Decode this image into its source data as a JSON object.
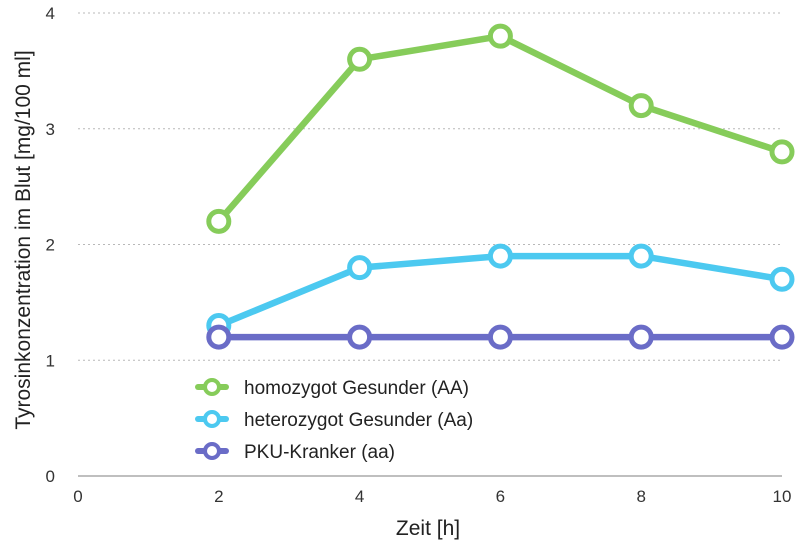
{
  "chart_data": {
    "type": "line",
    "xlabel": "Zeit [h]",
    "ylabel": "Tyrosinkonzentration im Blut [mg/100 ml]",
    "xlim": [
      0,
      10
    ],
    "ylim": [
      0,
      4
    ],
    "xticks": [
      0,
      2,
      4,
      6,
      8,
      10
    ],
    "yticks": [
      0,
      1,
      2,
      3,
      4
    ],
    "grid": "horizontal dotted",
    "legend_position": "lower-left inside plot",
    "x": [
      2,
      4,
      6,
      8,
      10
    ],
    "series": [
      {
        "name": "homozygot Gesunder (AA)",
        "color": "#86cc5a",
        "values": [
          2.2,
          3.6,
          3.8,
          3.2,
          2.8
        ]
      },
      {
        "name": "heterozygot Gesunder (Aa)",
        "color": "#4cc9f0",
        "values": [
          1.3,
          1.8,
          1.9,
          1.9,
          1.7
        ]
      },
      {
        "name": "PKU-Kranker (aa)",
        "color": "#6a6cc7",
        "values": [
          1.2,
          1.2,
          1.2,
          1.2,
          1.2
        ]
      }
    ]
  }
}
